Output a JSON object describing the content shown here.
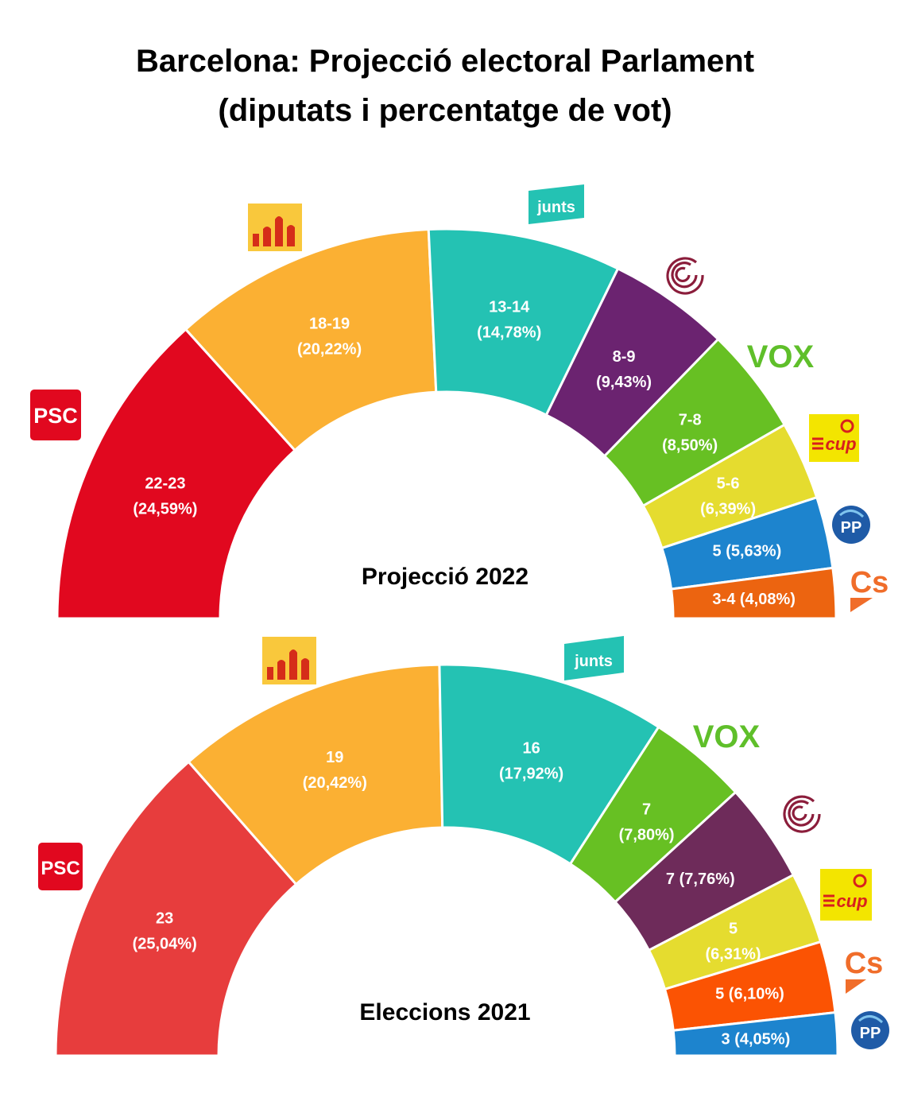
{
  "chart_data": {
    "type": "pie",
    "title_line1": "Barcelona: Projecció electoral Parlament",
    "title_line2": "(diputats i percentatge de vot)",
    "charts": [
      {
        "subtitle": "Projecció 2022",
        "series": [
          {
            "party": "PSC",
            "seats": "22-23",
            "percent_label": "(24,59%)",
            "value": 22.5,
            "color": "#e1081f"
          },
          {
            "party": "ERC",
            "seats": "18-19",
            "percent_label": "(20,22%)",
            "value": 18.5,
            "color": "#fbb033"
          },
          {
            "party": "Junts",
            "seats": "13-14",
            "percent_label": "(14,78%)",
            "value": 13.5,
            "color": "#24c2b3"
          },
          {
            "party": "Comuns",
            "seats": "8-9",
            "percent_label": "(9,43%)",
            "value": 8.5,
            "color": "#6b2370"
          },
          {
            "party": "VOX",
            "seats": "7-8",
            "percent_label": "(8,50%)",
            "value": 7.5,
            "color": "#67c023"
          },
          {
            "party": "CUP",
            "seats": "5-6",
            "percent_label": "(6,39%)",
            "value": 5.5,
            "color": "#e5dc2f"
          },
          {
            "party": "PP",
            "seats": "5",
            "percent_label": "(5,63%)",
            "value": 5,
            "color": "#1d84ce"
          },
          {
            "party": "Cs",
            "seats": "3-4",
            "percent_label": "(4,08%)",
            "value": 3.5,
            "color": "#ec6410"
          }
        ],
        "inline_labels": [
          false,
          false,
          false,
          false,
          false,
          false,
          true,
          true
        ]
      },
      {
        "subtitle": "Eleccions 2021",
        "series": [
          {
            "party": "PSC",
            "seats": "23",
            "percent_label": "(25,04%)",
            "value": 23,
            "color": "#e73d3d"
          },
          {
            "party": "ERC",
            "seats": "19",
            "percent_label": "(20,42%)",
            "value": 19,
            "color": "#fbb033"
          },
          {
            "party": "Junts",
            "seats": "16",
            "percent_label": "(17,92%)",
            "value": 16,
            "color": "#24c2b3"
          },
          {
            "party": "VOX",
            "seats": "7",
            "percent_label": "(7,80%)",
            "value": 7,
            "color": "#67c023"
          },
          {
            "party": "Comuns",
            "seats": "7",
            "percent_label": "(7,76%)",
            "value": 7,
            "color": "#6e2b5a"
          },
          {
            "party": "CUP",
            "seats": "5",
            "percent_label": "(6,31%)",
            "value": 5,
            "color": "#e5dc2f"
          },
          {
            "party": "Cs",
            "seats": "5",
            "percent_label": "(6,10%)",
            "value": 5,
            "color": "#fb5303"
          },
          {
            "party": "PP",
            "seats": "3",
            "percent_label": "(4,05%)",
            "value": 3,
            "color": "#1d84ce"
          }
        ],
        "inline_labels": [
          false,
          false,
          false,
          false,
          true,
          false,
          true,
          true
        ]
      }
    ]
  },
  "logos": {
    "psc": "PSC",
    "junts": "junts",
    "vox": "VOX",
    "cup": "cup",
    "pp": "PP",
    "cs": "Cs"
  },
  "colors": {
    "psc_red": "#e1081f",
    "erc_yellow": "#f9c83c",
    "erc_stripe": "#d52d19",
    "junts_teal": "#24c2b3",
    "vox_green": "#5fbf2a",
    "cup_yellow": "#f3e500",
    "cup_red": "#d8201d",
    "pp_blue": "#1f5ba7",
    "cs_orange": "#f06d2a",
    "comuns_maroon": "#8b1d3b"
  }
}
